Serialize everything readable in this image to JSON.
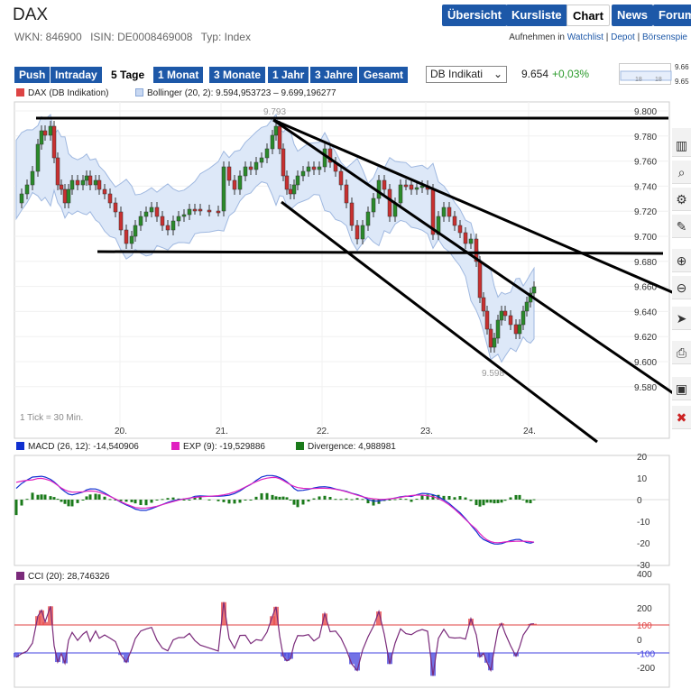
{
  "header": {
    "title": "DAX",
    "wkn": "WKN: 846900",
    "isin": "ISIN: DE0008469008",
    "type": "Typ: Index"
  },
  "nav": {
    "items": [
      "Übersicht",
      "Kursliste",
      "Chart",
      "News",
      "Forum"
    ],
    "active": "Chart"
  },
  "links": {
    "prefix": "Aufnehmen in",
    "watchlist": "Watchlist",
    "depot": "Depot",
    "boersenspiel": "Börsenspie"
  },
  "toolbar": {
    "ranges": [
      "Push",
      "Intraday",
      "5 Tage",
      "1 Monat",
      "3 Monate",
      "1 Jahr",
      "3 Jahre",
      "Gesamt"
    ],
    "active_range": "5 Tage",
    "exchange_select": "DB Indikati",
    "price": "9.654",
    "change": "+0,03%",
    "mini_ticks": [
      "18",
      "18"
    ],
    "mini_right": [
      "9.66",
      "9.65"
    ]
  },
  "legend_main": {
    "series1": "DAX (DB Indikation)",
    "series2": "Bollinger (20, 2): 9.594,953723 – 9.699,196277"
  },
  "legend_macd": {
    "macd": "MACD (26, 12): -14,540906",
    "exp": "EXP (9): -19,529886",
    "div": "Divergence: 4,988981"
  },
  "legend_cci": {
    "cci": "CCI (20): 28,746326"
  },
  "main_chart": {
    "y_ticks": [
      "9.800",
      "9.780",
      "9.760",
      "9.740",
      "9.720",
      "9.700",
      "9.680",
      "9.660",
      "9.640",
      "9.620",
      "9.600",
      "9.580"
    ],
    "x_ticks": [
      "20.",
      "21.",
      "22.",
      "23.",
      "24."
    ],
    "max_label": "9.793",
    "min_label": "9.598",
    "tick_note": "1 Tick = 30 Min."
  },
  "macd_chart": {
    "y_ticks": [
      "20",
      "10",
      "0",
      "-10",
      "-20",
      "-30"
    ]
  },
  "cci_chart": {
    "y_ticks": [
      "400",
      "200",
      "100",
      "0",
      "-100",
      "-200"
    ]
  },
  "colors": {
    "nav_blue": "#1d58a8",
    "macd_line": "#1030d0",
    "exp_line": "#e020c0",
    "divergence": "#1a7a1a",
    "cci_line": "#7a2a7a",
    "band_fill": "#dde8f8",
    "band_edge": "#9fb8e0",
    "positive": "#2a9a2a"
  },
  "tools": [
    "zigzag-icon",
    "bar-chart-icon",
    "zoom-icon",
    "settings-icon",
    "pencil-icon",
    "zoom-in-icon",
    "zoom-out-icon",
    "cursor-icon",
    "print-icon",
    "save-icon",
    "delete-icon"
  ]
}
